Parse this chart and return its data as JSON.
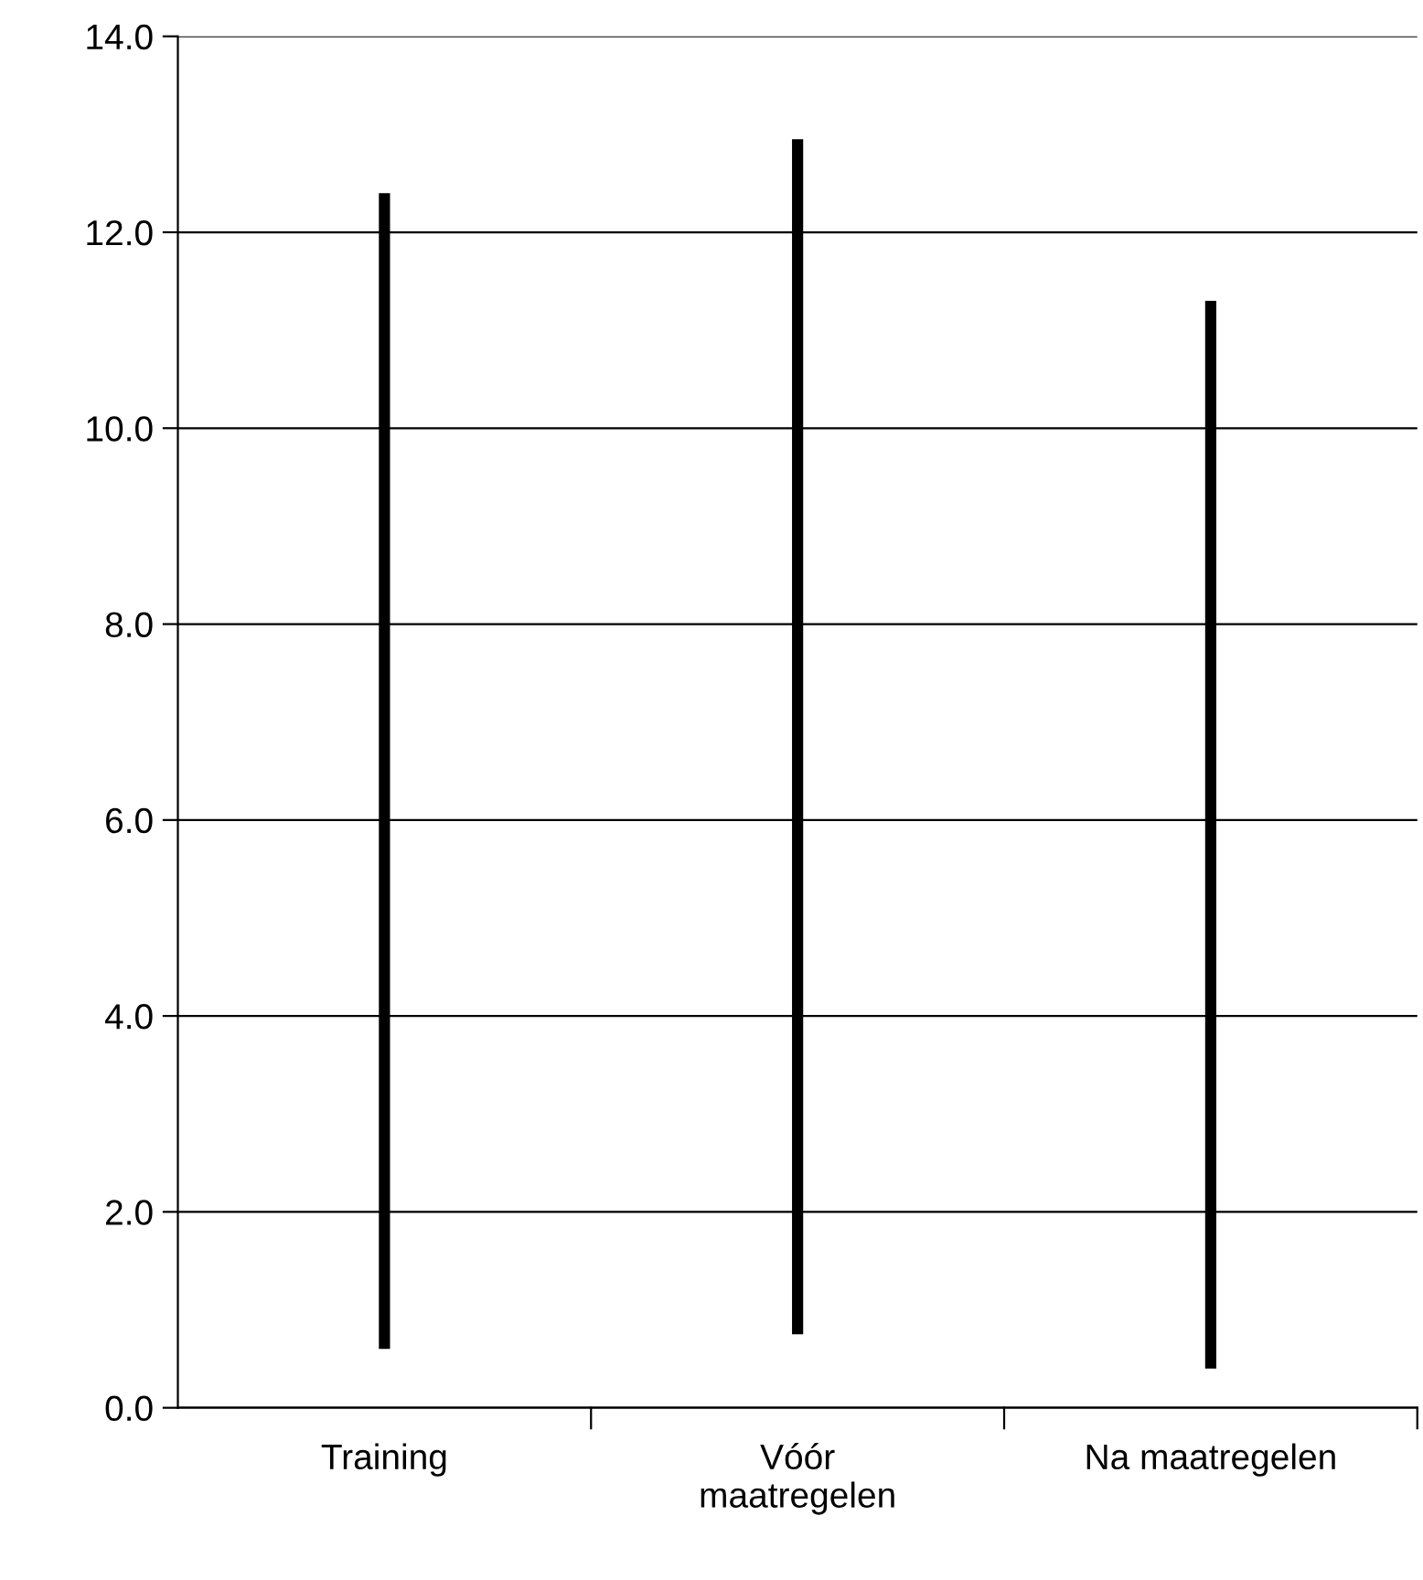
{
  "chart_data": {
    "type": "bar",
    "categories": [
      "Training",
      "Vóór\nmaatregelen",
      "Na maatregelen"
    ],
    "base": [
      0.6,
      0.75,
      0.4
    ],
    "values": [
      11.8,
      12.2,
      10.9
    ],
    "color": "#000000",
    "ylim": [
      0,
      14
    ],
    "yticks": [
      {
        "value": 0,
        "label": "0.0"
      },
      {
        "value": 2,
        "label": "2.0"
      },
      {
        "value": 4,
        "label": "4.0"
      },
      {
        "value": 6,
        "label": "6.0"
      },
      {
        "value": 8,
        "label": "8.0"
      },
      {
        "value": 10,
        "label": "10.0"
      },
      {
        "value": 12,
        "label": "12.0"
      },
      {
        "value": 14,
        "label": "14.0"
      }
    ],
    "grid": "y"
  }
}
